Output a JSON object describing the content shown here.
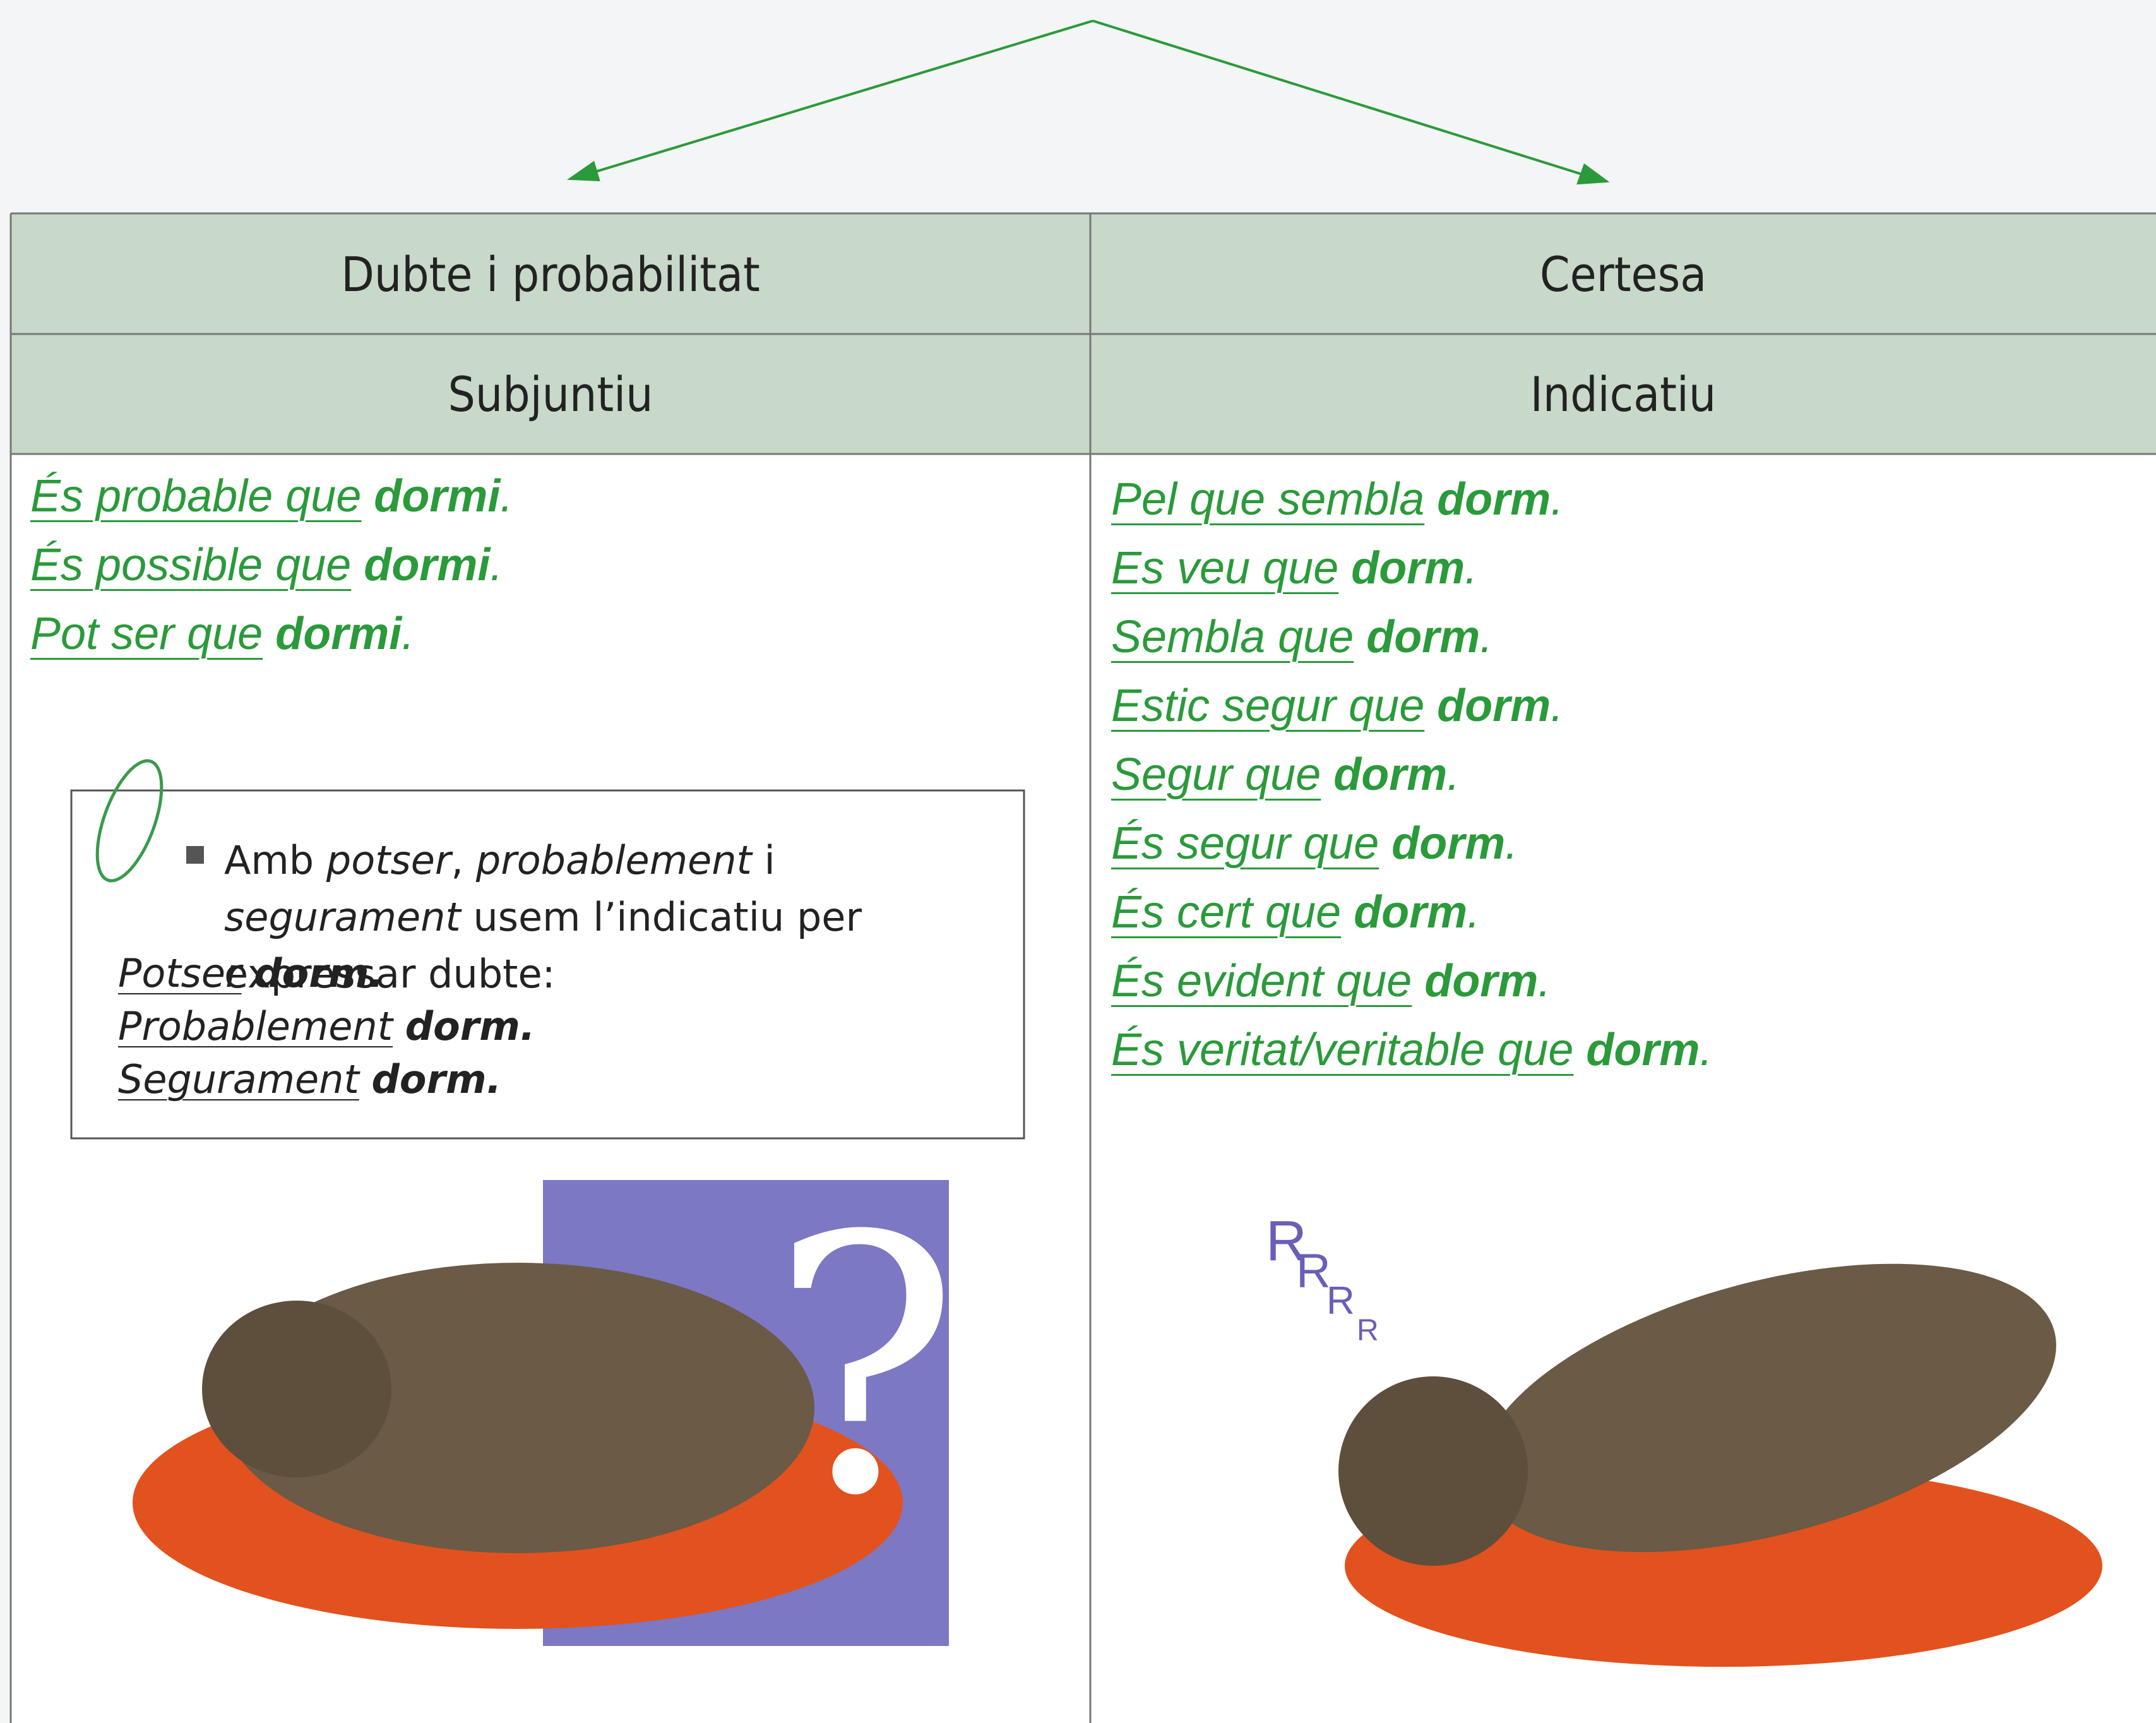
{
  "table": {
    "headers": [
      "Dubte i probabilitat",
      "Certesa"
    ],
    "moods": [
      "Subjuntiu",
      "Indicatiu"
    ],
    "columns": [
      {
        "sentences": [
          {
            "phrase": "És probable que",
            "verb": "dormi",
            "end": "."
          },
          {
            "phrase": "És possible que",
            "verb": "dormi",
            "end": "."
          },
          {
            "phrase": "Pot ser que",
            "verb": "dormi",
            "end": "."
          }
        ]
      },
      {
        "sentences": [
          {
            "phrase": "Pel que sembla",
            "verb": "dorm",
            "end": "."
          },
          {
            "phrase": "Es veu que",
            "verb": "dorm",
            "end": "."
          },
          {
            "phrase": "Sembla que",
            "verb": "dorm",
            "end": "."
          },
          {
            "phrase": "Estic segur que",
            "verb": "dorm",
            "end": "."
          },
          {
            "phrase": "Segur que",
            "verb": "dorm",
            "end": "."
          },
          {
            "phrase": "És segur que",
            "verb": "dorm",
            "end": "."
          },
          {
            "phrase": "És cert que",
            "verb": "dorm",
            "end": "."
          },
          {
            "phrase": "És evident que",
            "verb": "dorm",
            "end": "."
          },
          {
            "phrase": "És veritat/veritable que",
            "verb": "dorm",
            "end": "."
          }
        ]
      }
    ]
  },
  "note": {
    "intro": [
      "Amb ",
      "potser",
      ", ",
      "probablement",
      " i ",
      "segurament",
      " usem l’indicatiu per expressar dubte:"
    ],
    "examples": [
      {
        "adverb": "Potser",
        "verb": "dorm."
      },
      {
        "adverb": "Probablement",
        "verb": "dorm."
      },
      {
        "adverb": "Segurament",
        "verb": "dorm."
      }
    ]
  },
  "illustrations": {
    "question_mark": "?",
    "snore": [
      "R",
      "R",
      "R",
      "R"
    ]
  }
}
